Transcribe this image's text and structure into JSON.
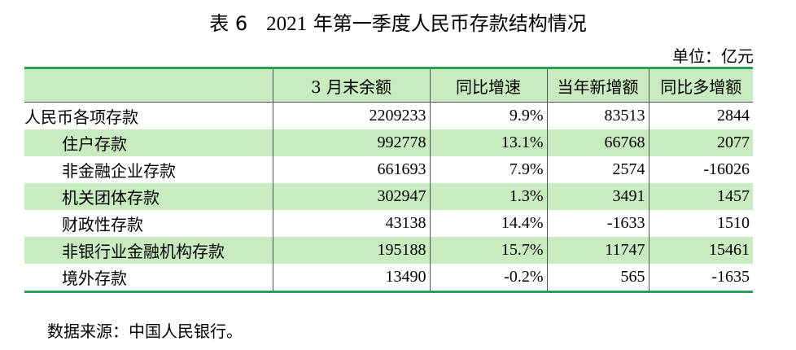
{
  "title": {
    "prefix": "表 6",
    "year": "2021",
    "text": "年第一季度人民币存款结构情况"
  },
  "unit": "单位：亿元",
  "table": {
    "headers": [
      "",
      "3 月末余额",
      "同比增速",
      "当年新增额",
      "同比多增额"
    ],
    "rows": [
      {
        "label": "人民币各项存款",
        "balance": "2209233",
        "growth": "9.9%",
        "new": "83513",
        "more": "2844"
      },
      {
        "label": "住户存款",
        "balance": "992778",
        "growth": "13.1%",
        "new": "66768",
        "more": "2077"
      },
      {
        "label": "非金融企业存款",
        "balance": "661693",
        "growth": "7.9%",
        "new": "2574",
        "more": "-16026"
      },
      {
        "label": "机关团体存款",
        "balance": "302947",
        "growth": "1.3%",
        "new": "3491",
        "more": "1457"
      },
      {
        "label": "财政性存款",
        "balance": "43138",
        "growth": "14.4%",
        "new": "-1633",
        "more": "1510"
      },
      {
        "label": "非银行业金融机构存款",
        "balance": "195188",
        "growth": "15.7%",
        "new": "11747",
        "more": "15461"
      },
      {
        "label": "境外存款",
        "balance": "13490",
        "growth": "-0.2%",
        "new": "565",
        "more": "-1635"
      }
    ]
  },
  "source": "数据来源：中国人民银行。",
  "colors": {
    "rule": "#2e9f57",
    "band": "#c8ebbf"
  }
}
